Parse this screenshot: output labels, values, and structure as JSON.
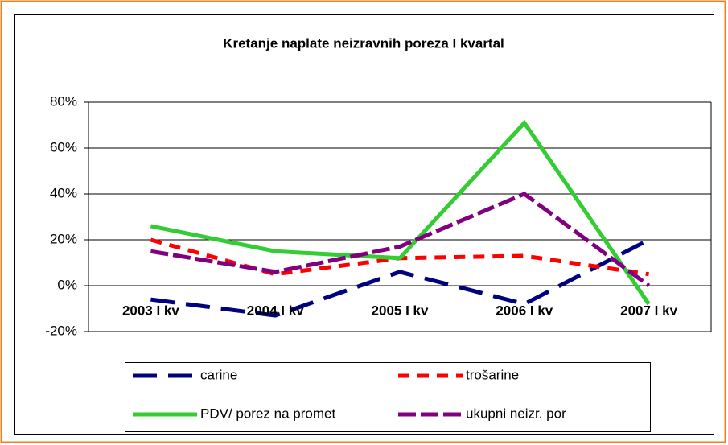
{
  "chart_data": {
    "type": "line",
    "title": "Kretanje naplate neizravnih poreza I kvartal",
    "categories": [
      "2003 I kv",
      "2004 I kv",
      "2005 I kv",
      "2006 I kv",
      "2007 I kv"
    ],
    "series": [
      {
        "name": "carine",
        "color": "#000080",
        "values": [
          -6,
          -13,
          6,
          -8,
          20
        ]
      },
      {
        "name": "trošarine",
        "color": "#ff0000",
        "values": [
          20,
          5,
          12,
          13,
          5
        ]
      },
      {
        "name": "PDV/ porez na promet",
        "color": "#33cc33",
        "values": [
          26,
          15,
          12,
          71,
          -8
        ]
      },
      {
        "name": "ukupni neizr. por",
        "color": "#800080",
        "values": [
          15,
          6,
          17,
          40,
          0
        ]
      }
    ],
    "ylim": [
      -20,
      80
    ],
    "yticks": [
      {
        "value": -20,
        "label": "-20%"
      },
      {
        "value": 0,
        "label": "0%"
      },
      {
        "value": 20,
        "label": "20%"
      },
      {
        "value": 40,
        "label": "40%"
      },
      {
        "value": 60,
        "label": "60%"
      },
      {
        "value": 80,
        "label": "80%"
      }
    ],
    "grid": true
  }
}
